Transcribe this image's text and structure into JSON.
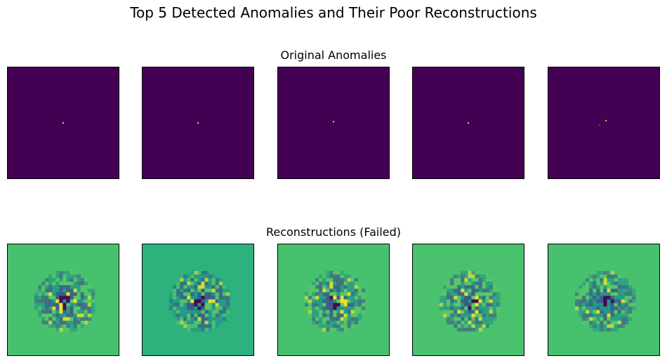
{
  "chart_data": {
    "type": "heatmap",
    "title": "Top 5 Detected Anomalies and Their Poor Reconstructions",
    "rows": [
      {
        "title": "Original Anomalies",
        "colormap": "viridis",
        "panels": [
          {
            "background": "#440154",
            "bright_pixels": [
              {
                "col": 0.5,
                "row": 0.5,
                "color": "#fde725"
              }
            ]
          },
          {
            "background": "#440154",
            "bright_pixels": [
              {
                "col": 0.5,
                "row": 0.5,
                "color": "#fde725"
              }
            ]
          },
          {
            "background": "#440154",
            "bright_pixels": [
              {
                "col": 0.5,
                "row": 0.49,
                "color": "#fde725"
              }
            ]
          },
          {
            "background": "#440154",
            "bright_pixels": [
              {
                "col": 0.5,
                "row": 0.5,
                "color": "#fde725"
              }
            ]
          },
          {
            "background": "#440154",
            "bright_pixels": [
              {
                "col": 0.52,
                "row": 0.48,
                "color": "#fde725"
              },
              {
                "col": 0.46,
                "row": 0.52,
                "color": "#31688e"
              }
            ]
          }
        ]
      },
      {
        "title": "Reconstructions (Failed)",
        "colormap": "viridis",
        "panels": [
          {
            "background": "#48c16e"
          },
          {
            "background": "#2db27d"
          },
          {
            "background": "#48c16e"
          },
          {
            "background": "#4ac16d"
          },
          {
            "background": "#48c16e"
          }
        ]
      }
    ],
    "colors": {
      "viridis_dark": "#440154",
      "viridis_blue": "#3b528b",
      "viridis_teal": "#21918c",
      "viridis_green": "#5ec962",
      "viridis_yellow": "#fde725"
    }
  }
}
